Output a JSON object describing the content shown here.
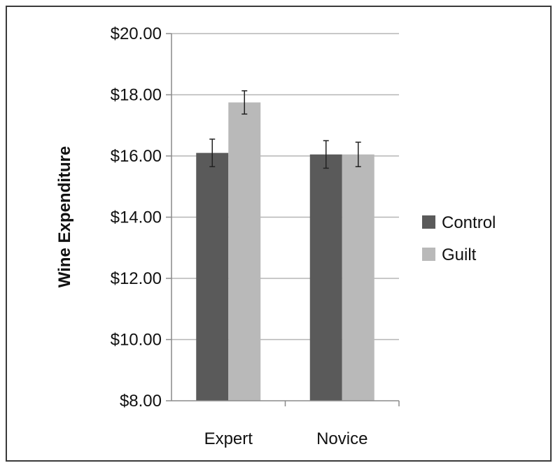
{
  "chart_data": {
    "type": "bar",
    "title": "",
    "xlabel": "",
    "ylabel": "Wine Expenditure",
    "categories": [
      "Expert",
      "Novice"
    ],
    "ylim": [
      8,
      20
    ],
    "ytick_step": 2,
    "ytick_labels": [
      "$8.00",
      "$10.00",
      "$12.00",
      "$14.00",
      "$16.00",
      "$18.00",
      "$20.00"
    ],
    "grid": true,
    "legend_position": "right",
    "series": [
      {
        "name": "Control",
        "color": "#5a5a5a",
        "values": [
          16.1,
          16.05
        ],
        "errors": [
          0.45,
          0.45
        ]
      },
      {
        "name": "Guilt",
        "color": "#b9b9b9",
        "values": [
          17.75,
          16.05
        ],
        "errors": [
          0.38,
          0.4
        ]
      }
    ]
  }
}
